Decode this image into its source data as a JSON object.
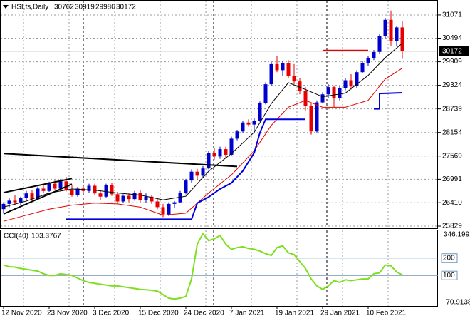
{
  "chart_data": [
    {
      "type": "candlestick",
      "title": "HSI,fs,Daily",
      "categories": [
        "12 Nov 2020",
        null,
        null,
        null,
        null,
        null,
        null,
        null,
        "23 Nov 2020",
        null,
        null,
        null,
        null,
        null,
        null,
        null,
        "3 Dec 2020",
        null,
        null,
        null,
        null,
        null,
        null,
        null,
        "15 Dec 2020",
        null,
        null,
        null,
        null,
        null,
        null,
        null,
        "24 Dec 2020",
        null,
        null,
        null,
        null,
        null,
        null,
        null,
        "7 Jan 2021",
        null,
        null,
        null,
        null,
        null,
        null,
        null,
        "19 Jan 2021",
        null,
        null,
        null,
        null,
        null,
        null,
        null,
        "29 Jan 2021",
        null,
        null,
        null,
        null,
        null,
        null,
        null,
        "10 Feb 2021",
        null,
        null,
        null,
        null,
        null,
        null
      ],
      "open": [
        26250,
        26380,
        26460,
        26420,
        26520,
        26640,
        26500,
        26760,
        26700,
        26880,
        26760,
        26940,
        26720,
        26600,
        26760,
        26700,
        26830,
        26640,
        26560,
        26840,
        26620,
        26440,
        26580,
        26500,
        26660,
        26480,
        26560,
        26440,
        26300,
        26120,
        26380,
        26420,
        26660,
        26960,
        27180,
        27080,
        27260,
        27650,
        27560,
        27740,
        27600,
        28000,
        28180,
        28400,
        28350,
        28450,
        28880,
        29350,
        29850,
        29700,
        29880,
        29560,
        29420,
        29180,
        28820,
        28180,
        28900,
        29100,
        29280,
        29000,
        29250,
        29450,
        29300,
        29650,
        29880,
        30000,
        30150,
        30550,
        30950,
        30420,
        30762
      ],
      "high": [
        26420,
        26520,
        26600,
        26560,
        26700,
        26720,
        26800,
        26870,
        26930,
        26960,
        27000,
        27050,
        26850,
        26800,
        26820,
        26880,
        26880,
        26720,
        26880,
        26900,
        26680,
        26620,
        26640,
        26700,
        26720,
        26640,
        26600,
        26500,
        26380,
        26420,
        26450,
        26700,
        27000,
        27240,
        27250,
        27320,
        27700,
        27780,
        27800,
        27800,
        28050,
        28220,
        28450,
        28480,
        28500,
        28920,
        29400,
        29900,
        30050,
        29920,
        29950,
        29850,
        29500,
        29280,
        28900,
        28950,
        29150,
        29350,
        29320,
        29300,
        29500,
        29600,
        29700,
        29920,
        30050,
        30200,
        30600,
        31000,
        31180,
        30800,
        30919
      ],
      "low": [
        26150,
        26300,
        26350,
        26360,
        26480,
        26450,
        26470,
        26640,
        26680,
        26720,
        26700,
        26690,
        26560,
        26560,
        26640,
        26650,
        26600,
        26480,
        26520,
        26580,
        26380,
        26400,
        26420,
        26460,
        26420,
        26400,
        26380,
        26250,
        26050,
        26080,
        26280,
        26400,
        26620,
        26900,
        26980,
        27020,
        27240,
        27480,
        27500,
        27520,
        27580,
        27960,
        28150,
        28300,
        28180,
        28420,
        28850,
        29300,
        29650,
        29560,
        29500,
        29350,
        29100,
        28700,
        28100,
        28150,
        28880,
        29000,
        28780,
        28950,
        29200,
        29220,
        29250,
        29620,
        29800,
        29950,
        30100,
        30500,
        30300,
        30300,
        29980
      ],
      "close": [
        26380,
        26460,
        26420,
        26520,
        26640,
        26500,
        26760,
        26700,
        26880,
        26760,
        26940,
        26720,
        26600,
        26760,
        26700,
        26830,
        26640,
        26560,
        26840,
        26620,
        26440,
        26580,
        26500,
        26660,
        26480,
        26560,
        26440,
        26300,
        26120,
        26380,
        26420,
        26660,
        26960,
        27180,
        27080,
        27260,
        27650,
        27560,
        27740,
        27600,
        28000,
        28180,
        28400,
        28350,
        28450,
        28880,
        29350,
        29850,
        29700,
        29880,
        29560,
        29420,
        29180,
        28820,
        28180,
        28900,
        29100,
        29280,
        29000,
        29250,
        29450,
        29300,
        29650,
        29880,
        30000,
        30150,
        30550,
        30950,
        30420,
        30762,
        30172
      ],
      "up_color": "#0000cd",
      "down_color": "#e60000",
      "ylim": [
        25776,
        31424
      ],
      "yticks": [
        25829,
        26410,
        26991,
        27569,
        28154,
        28739,
        29324,
        29909,
        30494,
        31071
      ],
      "grid": true,
      "lines": [
        {
          "color": "#000000",
          "x": [
            0,
            4,
            8,
            12,
            16,
            20,
            24,
            28,
            32,
            36,
            40,
            44,
            47,
            50,
            53,
            56,
            60,
            64,
            67,
            70
          ],
          "values": [
            26300,
            26450,
            26650,
            26750,
            26720,
            26650,
            26600,
            26480,
            26570,
            27190,
            27630,
            28160,
            28870,
            29390,
            29220,
            29040,
            29130,
            29570,
            30010,
            30370
          ]
        },
        {
          "color": "#e60000",
          "x": [
            0,
            4,
            8,
            12,
            16,
            20,
            24,
            28,
            32,
            36,
            40,
            44,
            47,
            50,
            53,
            56,
            60,
            64,
            67,
            70
          ],
          "values": [
            25950,
            26100,
            26250,
            26350,
            26400,
            26380,
            26300,
            26100,
            26150,
            26650,
            27100,
            27700,
            28330,
            28780,
            28950,
            28780,
            28780,
            28950,
            29480,
            29750
          ]
        },
        {
          "color": "#0000dd",
          "x": [
            11,
            33,
            34,
            36,
            38,
            40,
            42,
            44,
            45,
            46,
            53,
            54,
            65,
            66,
            66,
            70
          ],
          "values": [
            26000,
            26000,
            26400,
            26550,
            26750,
            26900,
            27200,
            27650,
            28150,
            28480,
            28480,
            null,
            28740,
            28740,
            29120,
            29140
          ]
        }
      ],
      "trendlines": [
        {
          "color": "#000000",
          "x": [
            0,
            41
          ],
          "values": [
            27630,
            27310
          ]
        },
        {
          "color": "#000000",
          "x": [
            0,
            12
          ],
          "values": [
            26660,
            27010
          ]
        },
        {
          "color": "#000000",
          "x": [
            0,
            12
          ],
          "values": [
            26130,
            26870
          ]
        },
        {
          "color": "#e60000",
          "x": [
            56,
            64
          ],
          "values": [
            30190,
            30190
          ]
        }
      ]
    },
    {
      "type": "line",
      "title": "CCI(40)",
      "series": [
        {
          "color": "#7fdf1f",
          "values": [
            160,
            150,
            148,
            140,
            135,
            130,
            125,
            110,
            100,
            100,
            110,
            105,
            100,
            85,
            70,
            60,
            55,
            50,
            45,
            40,
            40,
            35,
            30,
            25,
            20,
            18,
            15,
            10,
            -10,
            -30,
            -35,
            -30,
            -20,
            80,
            280,
            340,
            300,
            310,
            330,
            280,
            250,
            260,
            265,
            255,
            250,
            240,
            225,
            215,
            260,
            270,
            230,
            220,
            180,
            140,
            80,
            40,
            20,
            40,
            70,
            60,
            75,
            70,
            75,
            80,
            80,
            110,
            115,
            160,
            155,
            120,
            103.3767
          ]
        }
      ],
      "ylim": [
        -70.9138,
        346.1991
      ],
      "yticks": [
        100,
        200
      ],
      "level_color": "#6f93b8"
    }
  ]
}
